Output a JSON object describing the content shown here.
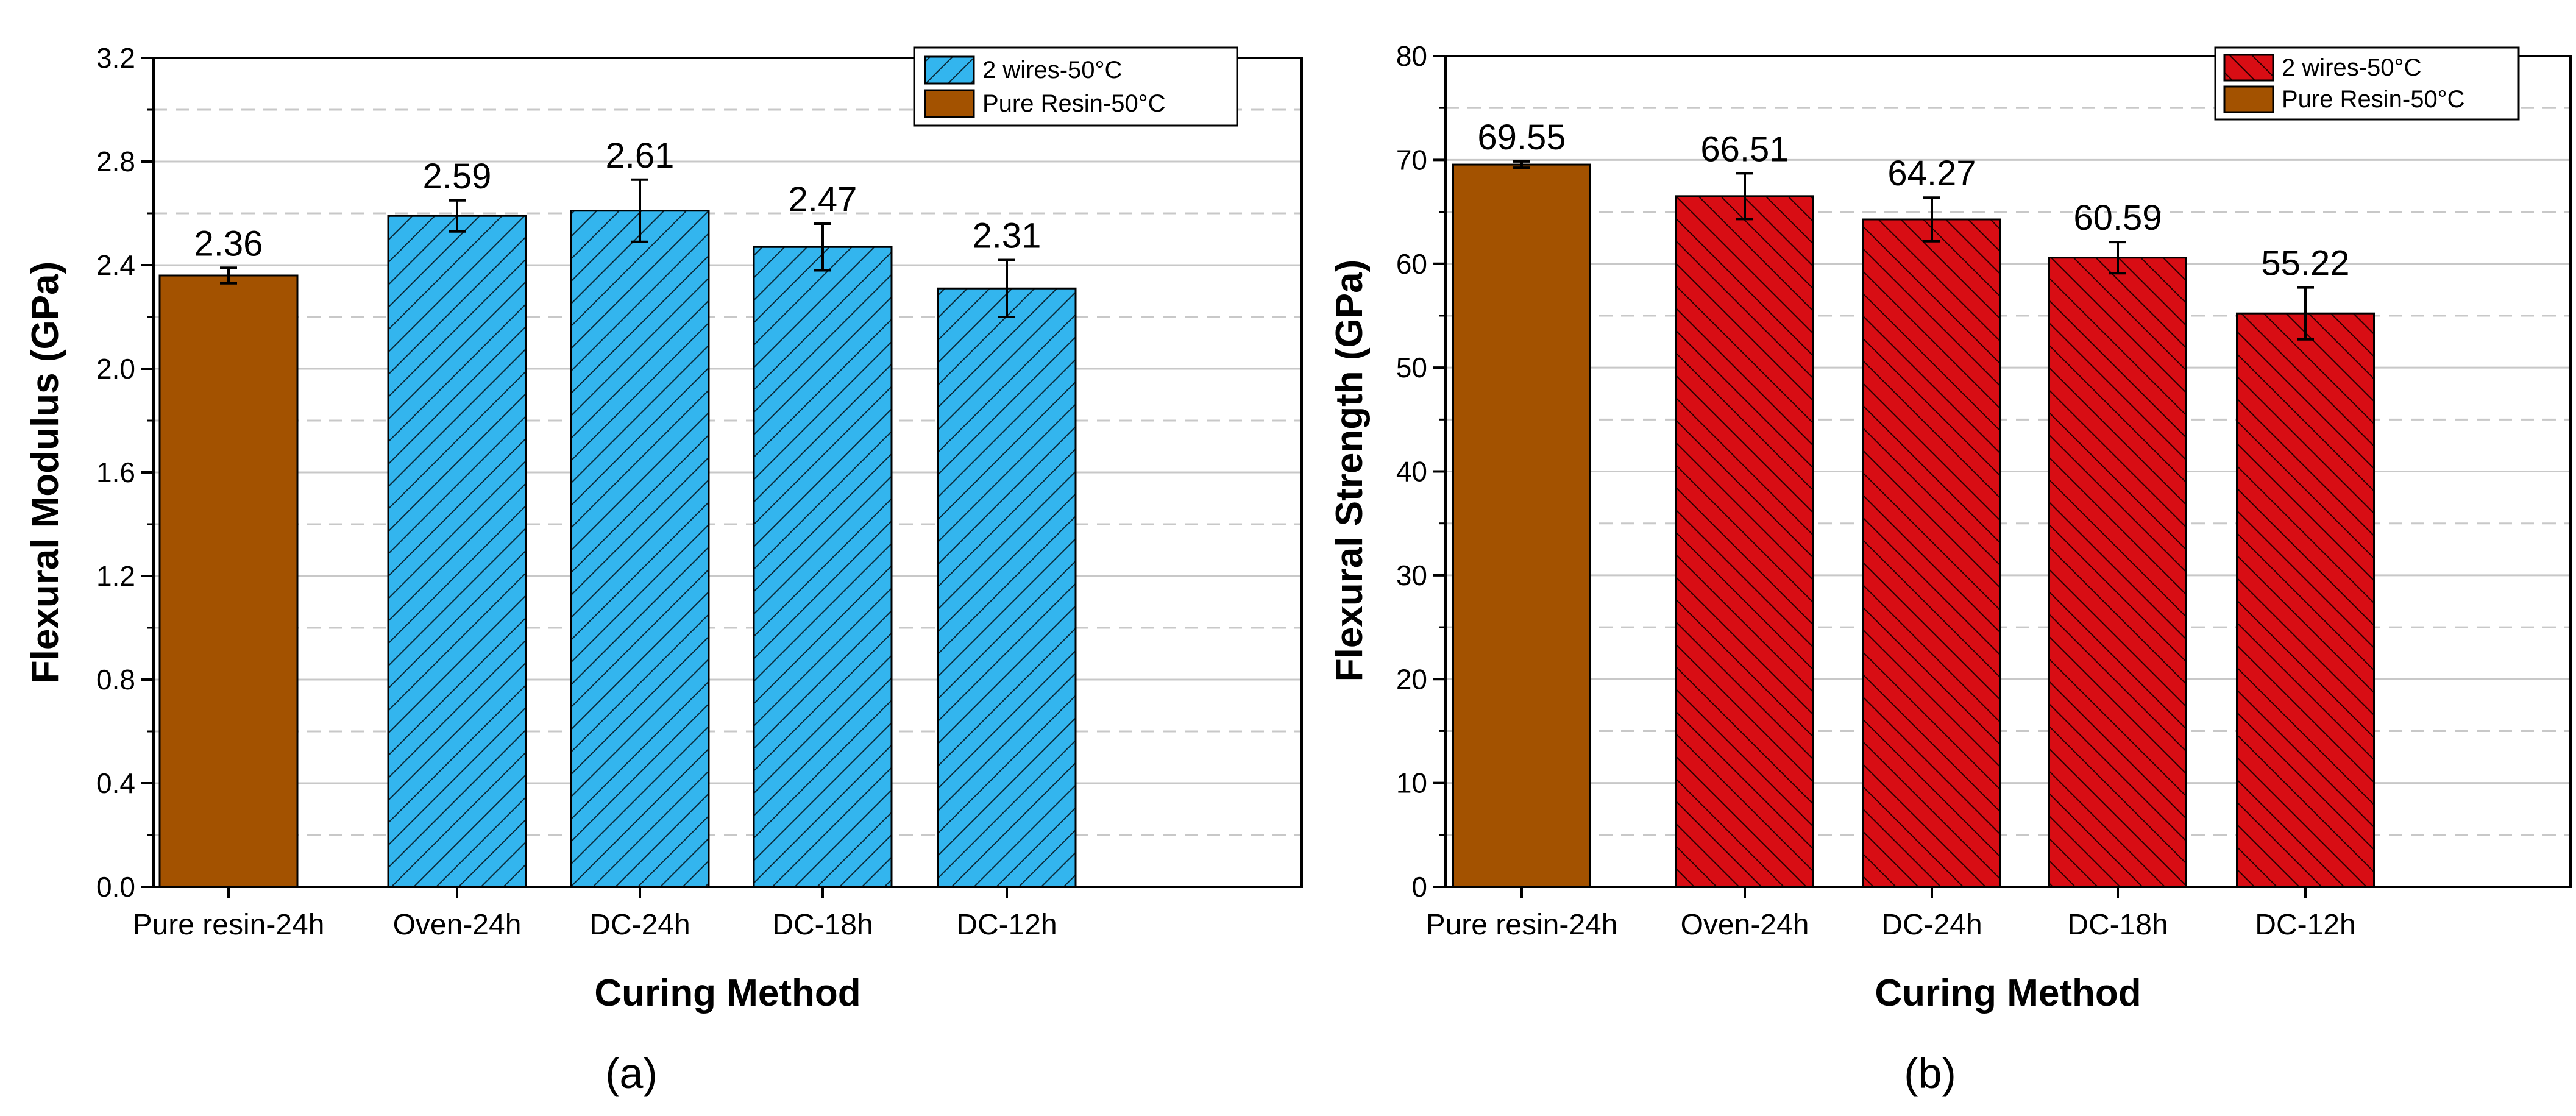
{
  "colors": {
    "brown_fill": "#a35200",
    "blue_fill": "#33b5ee",
    "red_fill": "#d80d14",
    "gridline": "#c8c8c8",
    "text": "#000000"
  },
  "chart_data": [
    {
      "panel_label": "(a)",
      "type": "bar",
      "xlabel": "Curing Method",
      "ylabel": "Flexural Modulus (GPa)",
      "ylim": [
        0,
        3.2
      ],
      "yticks": [
        "0.0",
        "0.4",
        "0.8",
        "1.2",
        "1.6",
        "2.0",
        "2.4",
        "2.8",
        "3.2"
      ],
      "categories": [
        "Pure resin-24h",
        "Oven-24h",
        "DC-24h",
        "DC-18h",
        "DC-12h"
      ],
      "values": [
        2.36,
        2.59,
        2.61,
        2.47,
        2.31
      ],
      "value_labels": [
        "2.36",
        "2.59",
        "2.61",
        "2.47",
        "2.31"
      ],
      "errors": [
        0.03,
        0.06,
        0.12,
        0.09,
        0.11
      ],
      "series_index": [
        1,
        0,
        0,
        0,
        0
      ],
      "legend": [
        "2 wires-50°C",
        "Pure Resin-50°C"
      ],
      "legend_position": "top-right",
      "hatch": "forward-diagonal",
      "series_colors": [
        "#33b5ee",
        "#a35200"
      ]
    },
    {
      "panel_label": "(b)",
      "type": "bar",
      "xlabel": "Curing Method",
      "ylabel": "Flexural Strength (GPa)",
      "ylim": [
        0,
        80
      ],
      "yticks": [
        "0",
        "10",
        "20",
        "30",
        "40",
        "50",
        "60",
        "70",
        "80"
      ],
      "categories": [
        "Pure resin-24h",
        "Oven-24h",
        "DC-24h",
        "DC-18h",
        "DC-12h"
      ],
      "values": [
        69.55,
        66.51,
        64.27,
        60.59,
        55.22
      ],
      "value_labels": [
        "69.55",
        "66.51",
        "64.27",
        "60.59",
        "55.22"
      ],
      "errors": [
        0.3,
        2.2,
        2.1,
        1.5,
        2.5
      ],
      "series_index": [
        1,
        0,
        0,
        0,
        0
      ],
      "legend": [
        "2 wires-50°C",
        "Pure Resin-50°C"
      ],
      "legend_position": "top-right",
      "hatch": "backward-diagonal",
      "series_colors": [
        "#d80d14",
        "#a35200"
      ]
    }
  ]
}
